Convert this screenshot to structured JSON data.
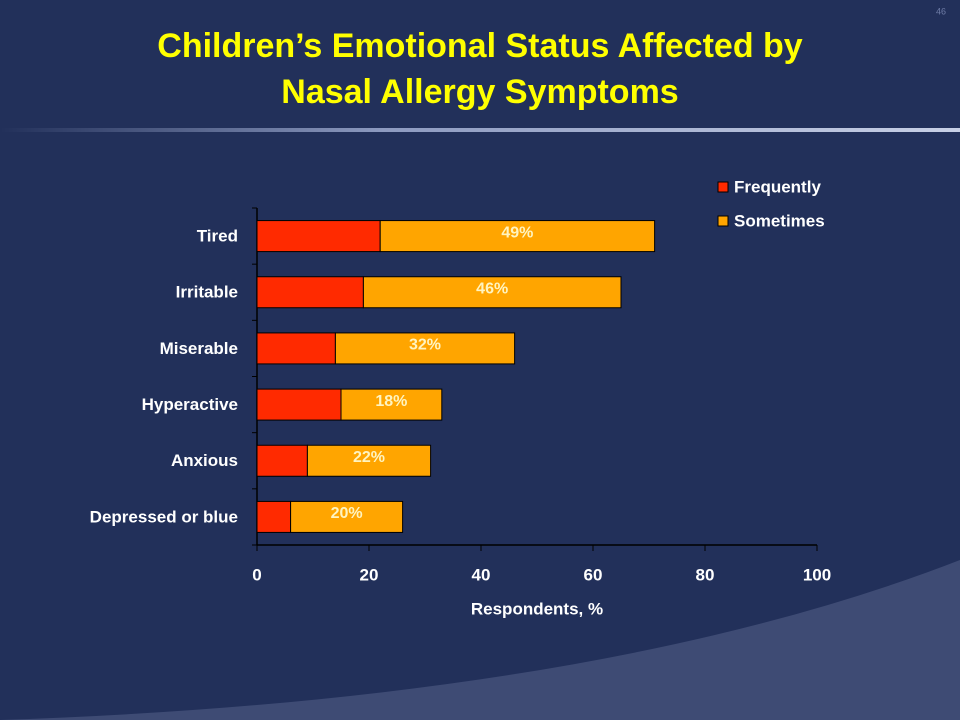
{
  "page_number": "46",
  "chart_data": {
    "type": "stacked_barh",
    "title": "Children’s Emotional Status Affected by Nasal Allergy Symptoms",
    "xlabel": "Respondents, %",
    "categories": [
      "Tired",
      "Irritable",
      "Miserable",
      "Hyperactive",
      "Anxious",
      "Depressed or blue"
    ],
    "series": [
      {
        "name": "Frequently",
        "color": "#ff2a00",
        "values": [
          22,
          19,
          14,
          15,
          9,
          6
        ]
      },
      {
        "name": "Sometimes",
        "color": "#ffa500",
        "values": [
          49,
          46,
          32,
          18,
          22,
          20
        ],
        "value_labels": [
          "49%",
          "46%",
          "32%",
          "18%",
          "22%",
          "20%"
        ]
      }
    ],
    "xlim": [
      0,
      100
    ],
    "xticks": [
      0,
      20,
      40,
      60,
      80,
      100
    ],
    "legend": "upper right"
  }
}
